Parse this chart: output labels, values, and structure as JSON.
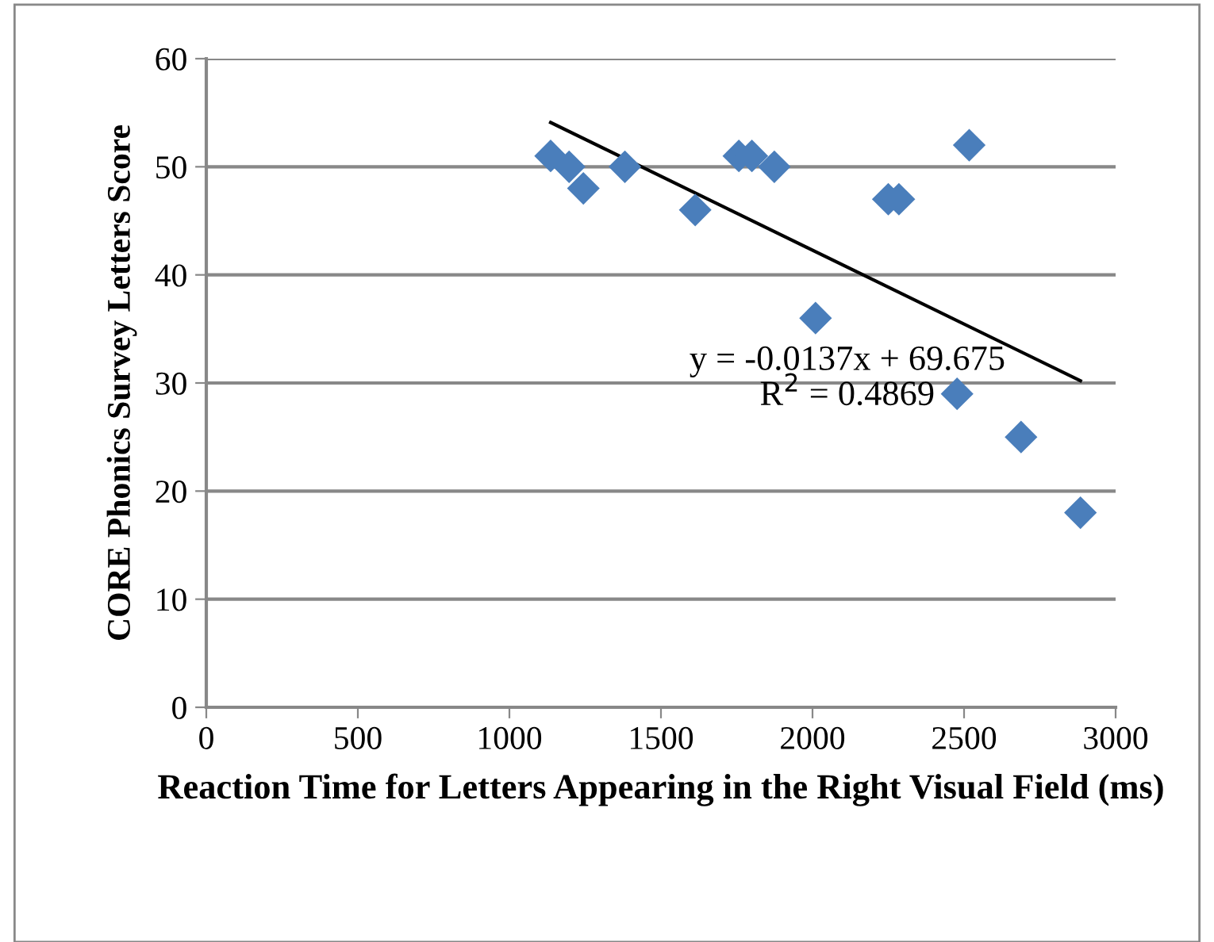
{
  "chart_data": {
    "type": "scatter",
    "xlabel": "Reaction Time for Letters Appearing in the Right Visual Field (ms)",
    "ylabel": "CORE Phonics Survey Letters Score",
    "xlim": [
      0,
      3000
    ],
    "xticks": [
      0,
      500,
      1000,
      1500,
      2000,
      2500,
      3000
    ],
    "ylim": [
      0,
      60
    ],
    "yticks": [
      0,
      10,
      20,
      30,
      40,
      50,
      60
    ],
    "grid": "y",
    "legend": false,
    "series": [
      {
        "marker": "diamond",
        "color": "#4a7ebb",
        "x": [
          1136,
          1197,
          1244,
          1381,
          1613,
          1757,
          1800,
          1874,
          2010,
          2250,
          2285,
          2517,
          2477,
          2688,
          2884
        ],
        "values": [
          51,
          50,
          48,
          50,
          46,
          51,
          51,
          50,
          36,
          47,
          47,
          52,
          29,
          25,
          18
        ]
      },
      {
        "type": "line",
        "marker": "none",
        "color": "#000000",
        "x": [
          1136,
          2884
        ],
        "values": [
          54.1,
          30.2
        ]
      }
    ],
    "annotations": [
      "y = -0.0137x + 69.675\nR$^{2}$ = 0.4869"
    ]
  }
}
